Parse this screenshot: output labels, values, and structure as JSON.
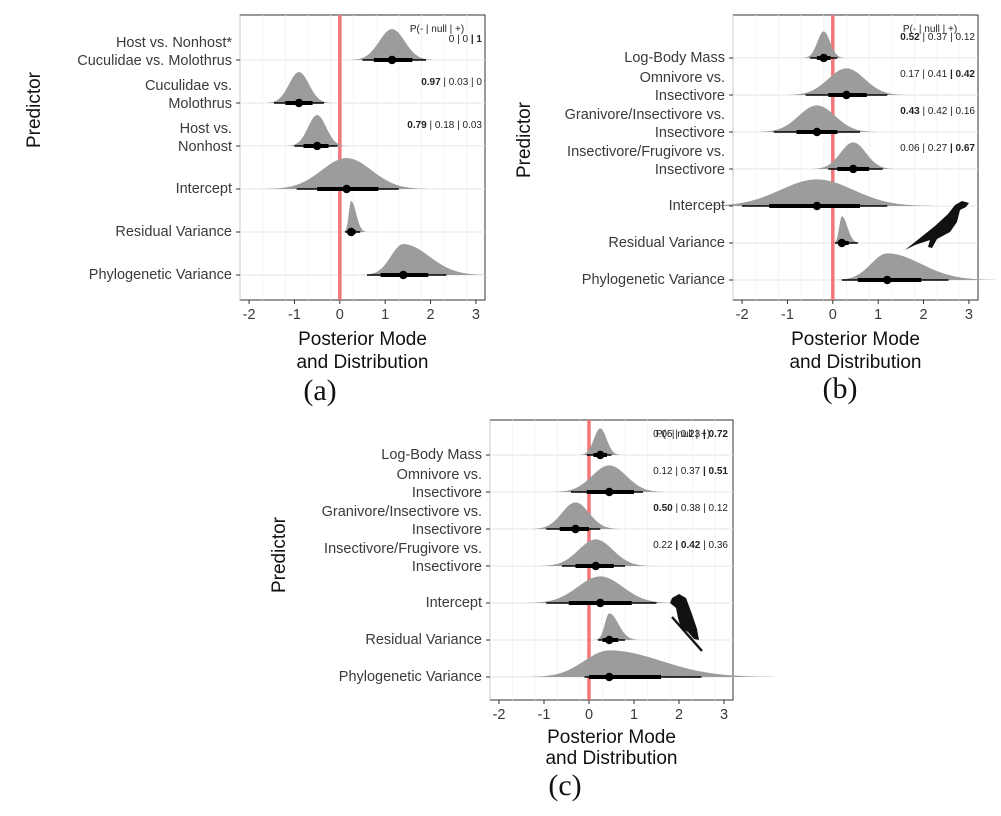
{
  "chart_data": [
    {
      "type": "posterior-halfeye",
      "panel_label": "(a)",
      "xlabel": "Posterior Mode\nand Distribution",
      "ylabel": "Predictor",
      "xlim": [
        -2.2,
        3.2
      ],
      "xticks": [
        -2,
        -1,
        0,
        1,
        2,
        3
      ],
      "prob_header": "P(- | null | +)",
      "icon": "",
      "rows": [
        {
          "label": "Host vs. Nonhost*\nCuculidae vs. Molothrus",
          "mode": 1.15,
          "ci80": [
            0.75,
            1.6
          ],
          "ci95": [
            0.5,
            1.9
          ],
          "sd": 0.28,
          "prob": [
            "0",
            "0",
            "1"
          ],
          "bold": 2
        },
        {
          "label": "Cuculidae vs.\nMolothrus",
          "mode": -0.9,
          "ci80": [
            -1.2,
            -0.6
          ],
          "ci95": [
            -1.45,
            -0.35
          ],
          "sd": 0.22,
          "prob": [
            "0.97",
            "0.03",
            "0"
          ],
          "bold": 0
        },
        {
          "label": "Host vs.\nNonhost",
          "mode": -0.5,
          "ci80": [
            -0.8,
            -0.25
          ],
          "ci95": [
            -1.0,
            -0.05
          ],
          "sd": 0.2,
          "prob": [
            "0.79",
            "0.18",
            "0.03"
          ],
          "bold": 0
        },
        {
          "label": "Intercept",
          "mode": 0.15,
          "ci80": [
            -0.5,
            0.85
          ],
          "ci95": [
            -0.95,
            1.3
          ],
          "sd": 0.55,
          "prob": null,
          "bold": -1
        },
        {
          "label": "Residual Variance",
          "mode": 0.25,
          "ci80": [
            0.18,
            0.35
          ],
          "ci95": [
            0.12,
            0.45
          ],
          "sd": 0.08,
          "prob": null,
          "bold": -1
        },
        {
          "label": "Phylogenetic Variance",
          "mode": 1.4,
          "ci80": [
            0.9,
            1.95
          ],
          "ci95": [
            0.6,
            2.35
          ],
          "sd": 0.42,
          "prob": null,
          "bold": -1
        }
      ]
    },
    {
      "type": "posterior-halfeye",
      "panel_label": "(b)",
      "xlabel": "Posterior Mode\nand Distribution",
      "ylabel": "Predictor",
      "xlim": [
        -2.2,
        3.2
      ],
      "xticks": [
        -2,
        -1,
        0,
        1,
        2,
        3
      ],
      "prob_header": "P(- | null | +)",
      "icon": "bird-silhouette-icon",
      "rows": [
        {
          "label": "Log-Body Mass",
          "mode": -0.2,
          "ci80": [
            -0.35,
            -0.05
          ],
          "ci95": [
            -0.5,
            0.1
          ],
          "sd": 0.14,
          "prob": [
            "0.52",
            "0.37",
            "0.12"
          ],
          "bold": 0
        },
        {
          "label": "Omnivore vs.\nInsectivore",
          "mode": 0.3,
          "ci80": [
            -0.1,
            0.75
          ],
          "ci95": [
            -0.6,
            1.2
          ],
          "sd": 0.4,
          "prob": [
            "0.17",
            "0.41",
            "0.42"
          ],
          "bold": 2
        },
        {
          "label": "Granivore/Insectivore vs.\nInsectivore",
          "mode": -0.35,
          "ci80": [
            -0.8,
            0.1
          ],
          "ci95": [
            -1.3,
            0.6
          ],
          "sd": 0.4,
          "prob": [
            "0.43",
            "0.42",
            "0.16"
          ],
          "bold": 0
        },
        {
          "label": "Insectivore/Frugivore vs.\nInsectivore",
          "mode": 0.45,
          "ci80": [
            0.1,
            0.8
          ],
          "ci95": [
            -0.1,
            1.1
          ],
          "sd": 0.28,
          "prob": [
            "0.06",
            "0.27",
            "0.67"
          ],
          "bold": 2
        },
        {
          "label": "Intercept",
          "mode": -0.35,
          "ci80": [
            -1.4,
            0.6
          ],
          "ci95": [
            -2.0,
            1.2
          ],
          "sd": 0.8,
          "prob": null,
          "bold": -1
        },
        {
          "label": "Residual Variance",
          "mode": 0.2,
          "ci80": [
            0.12,
            0.35
          ],
          "ci95": [
            0.05,
            0.55
          ],
          "sd": 0.09,
          "prob": null,
          "bold": -1
        },
        {
          "label": "Phylogenetic Variance",
          "mode": 1.2,
          "ci80": [
            0.55,
            1.95
          ],
          "ci95": [
            0.2,
            2.55
          ],
          "sd": 0.55,
          "prob": null,
          "bold": -1
        }
      ]
    },
    {
      "type": "posterior-halfeye",
      "panel_label": "(c)",
      "xlabel": "Posterior Mode\nand Distribution",
      "ylabel": "Predictor",
      "xlim": [
        -2.2,
        3.2
      ],
      "xticks": [
        -2,
        -1,
        0,
        1,
        2,
        3
      ],
      "prob_header": "P(- | null | +)",
      "icon": "perched-bird-icon",
      "rows": [
        {
          "label": "Log-Body Mass",
          "mode": 0.25,
          "ci80": [
            0.1,
            0.4
          ],
          "ci95": [
            -0.05,
            0.5
          ],
          "sd": 0.14,
          "prob": [
            "0.05",
            "0.23",
            "0.72"
          ],
          "bold": 2
        },
        {
          "label": "Omnivore vs.\nInsectivore",
          "mode": 0.45,
          "ci80": [
            -0.05,
            1.0
          ],
          "ci95": [
            -0.4,
            1.2
          ],
          "sd": 0.38,
          "prob": [
            "0.12",
            "0.37",
            "0.51"
          ],
          "bold": 2
        },
        {
          "label": "Granivore/Insectivore vs.\nInsectivore",
          "mode": -0.3,
          "ci80": [
            -0.65,
            0.0
          ],
          "ci95": [
            -0.95,
            0.25
          ],
          "sd": 0.3,
          "prob": [
            "0.50",
            "0.38",
            "0.12"
          ],
          "bold": 0
        },
        {
          "label": "Insectivore/Frugivore vs.\nInsectivore",
          "mode": 0.15,
          "ci80": [
            -0.3,
            0.55
          ],
          "ci95": [
            -0.6,
            0.8
          ],
          "sd": 0.38,
          "prob": [
            "0.22",
            "0.42",
            "0.36"
          ],
          "bold": 1
        },
        {
          "label": "Intercept",
          "mode": 0.25,
          "ci80": [
            -0.45,
            0.95
          ],
          "ci95": [
            -0.95,
            1.5
          ],
          "sd": 0.5,
          "prob": null,
          "bold": -1
        },
        {
          "label": "Residual Variance",
          "mode": 0.45,
          "ci80": [
            0.3,
            0.65
          ],
          "ci95": [
            0.2,
            0.8
          ],
          "sd": 0.15,
          "prob": null,
          "bold": -1
        },
        {
          "label": "Phylogenetic Variance",
          "mode": 0.45,
          "ci80": [
            0.0,
            1.6
          ],
          "ci95": [
            -0.1,
            2.5
          ],
          "sd": 0.85,
          "prob": null,
          "bold": -1
        }
      ]
    }
  ]
}
